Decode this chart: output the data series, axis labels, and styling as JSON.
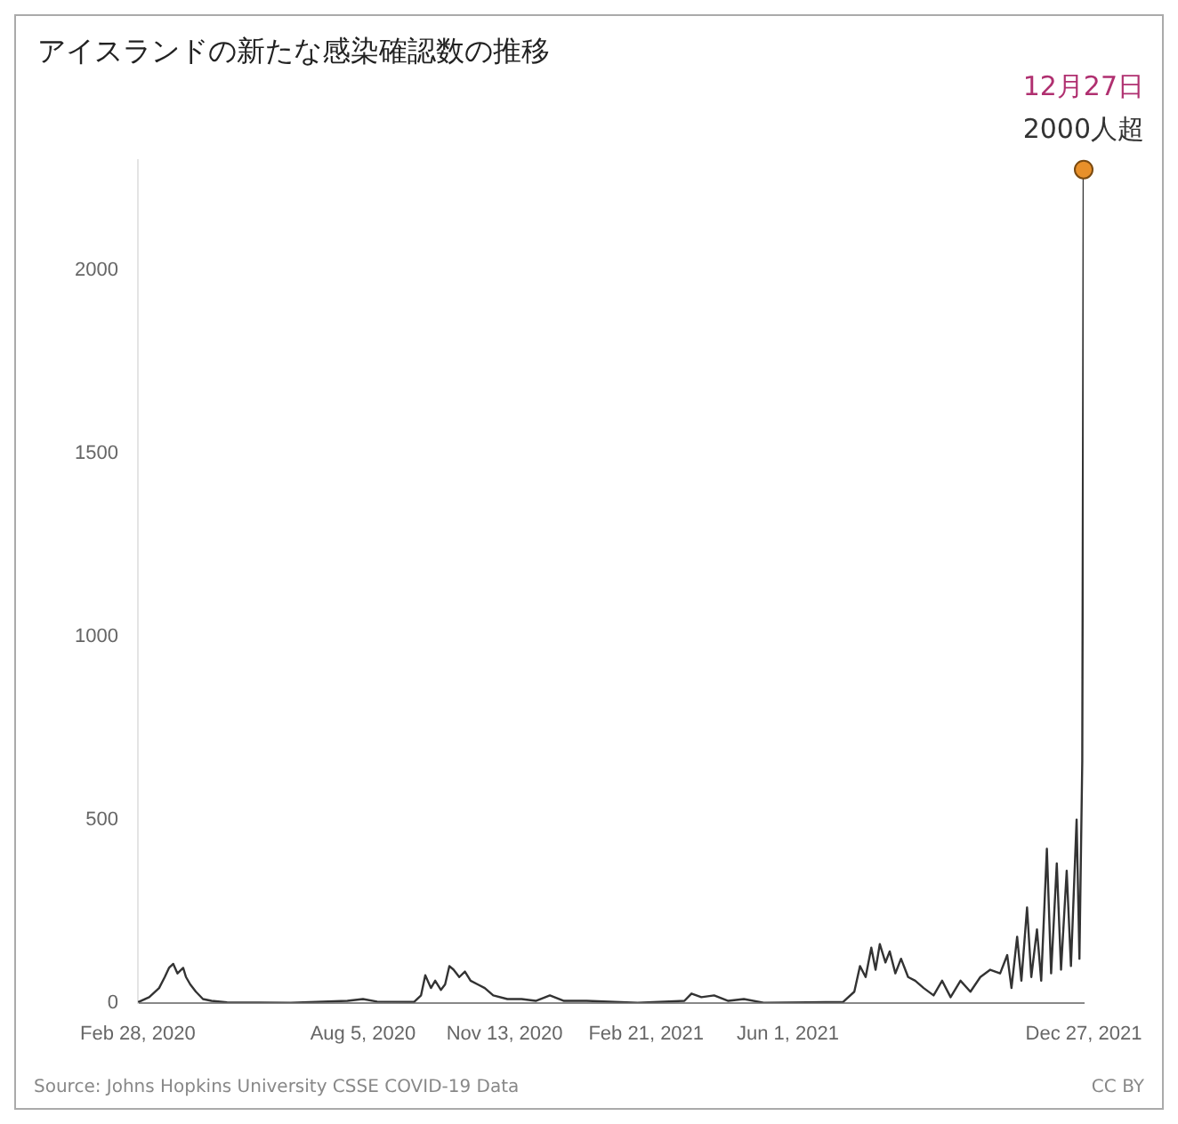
{
  "chart_data": {
    "type": "line",
    "title": "アイスランドの新たな感染確認数の推移",
    "x": [
      "2020-02-28",
      "2020-03-07",
      "2020-03-14",
      "2020-03-18",
      "2020-03-21",
      "2020-03-24",
      "2020-03-27",
      "2020-03-31",
      "2020-04-02",
      "2020-04-05",
      "2020-04-09",
      "2020-04-14",
      "2020-04-20",
      "2020-05-01",
      "2020-06-15",
      "2020-07-25",
      "2020-08-05",
      "2020-08-15",
      "2020-09-10",
      "2020-09-15",
      "2020-09-18",
      "2020-09-22",
      "2020-09-25",
      "2020-09-29",
      "2020-10-02",
      "2020-10-05",
      "2020-10-08",
      "2020-10-12",
      "2020-10-16",
      "2020-10-20",
      "2020-10-25",
      "2020-10-30",
      "2020-11-05",
      "2020-11-15",
      "2020-11-25",
      "2020-12-05",
      "2020-12-15",
      "2020-12-25",
      "2021-01-10",
      "2021-02-15",
      "2021-03-20",
      "2021-03-25",
      "2021-04-01",
      "2021-04-10",
      "2021-04-20",
      "2021-05-01",
      "2021-05-15",
      "2021-06-15",
      "2021-07-10",
      "2021-07-18",
      "2021-07-22",
      "2021-07-26",
      "2021-07-30",
      "2021-08-02",
      "2021-08-05",
      "2021-08-09",
      "2021-08-12",
      "2021-08-16",
      "2021-08-20",
      "2021-08-25",
      "2021-08-30",
      "2021-09-05",
      "2021-09-12",
      "2021-09-18",
      "2021-09-24",
      "2021-10-01",
      "2021-10-08",
      "2021-10-15",
      "2021-10-22",
      "2021-10-29",
      "2021-11-03",
      "2021-11-06",
      "2021-11-10",
      "2021-11-13",
      "2021-11-17",
      "2021-11-20",
      "2021-11-24",
      "2021-11-27",
      "2021-12-01",
      "2021-12-04",
      "2021-12-08",
      "2021-12-11",
      "2021-12-15",
      "2021-12-18",
      "2021-12-22",
      "2021-12-24",
      "2021-12-26",
      "2021-12-27"
    ],
    "series": [
      {
        "color": "#333333",
        "values": [
          1,
          15,
          40,
          70,
          95,
          106,
          80,
          95,
          70,
          50,
          30,
          10,
          5,
          1,
          0,
          5,
          10,
          3,
          2,
          20,
          75,
          40,
          60,
          35,
          50,
          100,
          90,
          70,
          85,
          60,
          50,
          40,
          20,
          10,
          10,
          5,
          20,
          5,
          5,
          0,
          5,
          25,
          15,
          20,
          5,
          10,
          0,
          1,
          2,
          30,
          100,
          70,
          150,
          90,
          160,
          110,
          140,
          80,
          120,
          70,
          60,
          40,
          20,
          60,
          15,
          60,
          30,
          70,
          90,
          80,
          130,
          40,
          180,
          60,
          260,
          70,
          200,
          60,
          420,
          80,
          380,
          90,
          360,
          100,
          500,
          120,
          660,
          2274
        ]
      }
    ],
    "ylim": [
      0,
      2300
    ],
    "yticks": [
      0,
      500,
      1000,
      1500,
      2000
    ],
    "xlim": [
      "2020-02-28",
      "2021-12-27"
    ],
    "xticks": [
      {
        "value": "2020-02-28",
        "label": "Feb 28, 2020"
      },
      {
        "value": "2020-08-05",
        "label": "Aug 5, 2020"
      },
      {
        "value": "2020-11-13",
        "label": "Nov 13, 2020"
      },
      {
        "value": "2021-02-21",
        "label": "Feb 21, 2021"
      },
      {
        "value": "2021-06-01",
        "label": "Jun 1, 2021"
      },
      {
        "value": "2021-12-27",
        "label": "Dec 27, 2021"
      }
    ],
    "grid": false,
    "legend": false,
    "annotations": [
      {
        "text": "12月27日",
        "x": "2021-12-27",
        "y": 2274
      },
      {
        "text": "2000人超",
        "x": "2021-12-27",
        "y": 2274
      },
      "Source: Johns Hopkins University CSSE COVID-19 Data",
      "CC BY"
    ]
  }
}
